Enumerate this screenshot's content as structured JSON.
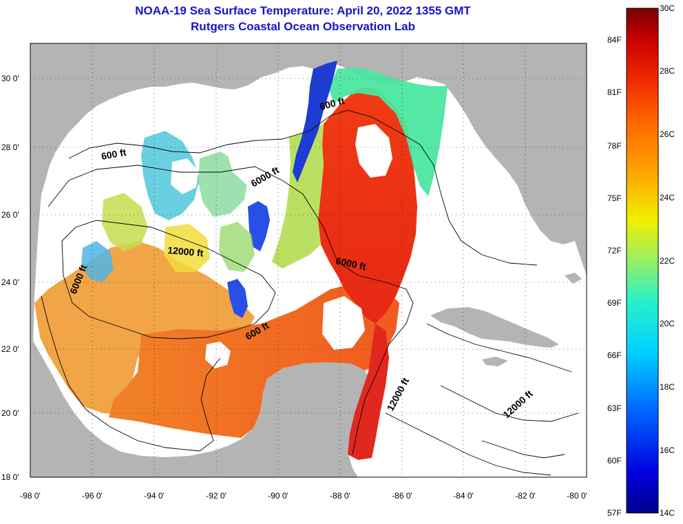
{
  "title": {
    "line1": "NOAA-19 Sea Surface Temperature:  April 20, 2022 1355 GMT",
    "line2": "Rutgers Coastal Ocean Observation Lab"
  },
  "colors": {
    "title": "#1414c8",
    "land": "#b4b4b4",
    "cloud": "#ffffff"
  },
  "map": {
    "lat_labels": [
      "30 0'",
      "28 0'",
      "26 0'",
      "24 0'",
      "22 0'",
      "20 0'",
      "18 0'"
    ],
    "lon_labels": [
      "-98 0'",
      "-96 0'",
      "-94 0'",
      "-92 0'",
      "-90 0'",
      "-88 0'",
      "-86 0'",
      "-84 0'",
      "-82 0'",
      "-80 0'"
    ],
    "contour_labels": [
      "600 ft",
      "600 ft",
      "6000 ft",
      "12000 ft",
      "6000 ft",
      "6000 ft",
      "600 ft",
      "12000 ft",
      "12000 ft"
    ]
  },
  "colorbar": {
    "fahrenheit": [
      "84F",
      "81F",
      "78F",
      "75F",
      "72F",
      "69F",
      "66F",
      "63F",
      "60F",
      "57F"
    ],
    "celsius": [
      "30C",
      "28C",
      "26C",
      "24C",
      "22C",
      "20C",
      "18C",
      "16C",
      "14C"
    ]
  }
}
